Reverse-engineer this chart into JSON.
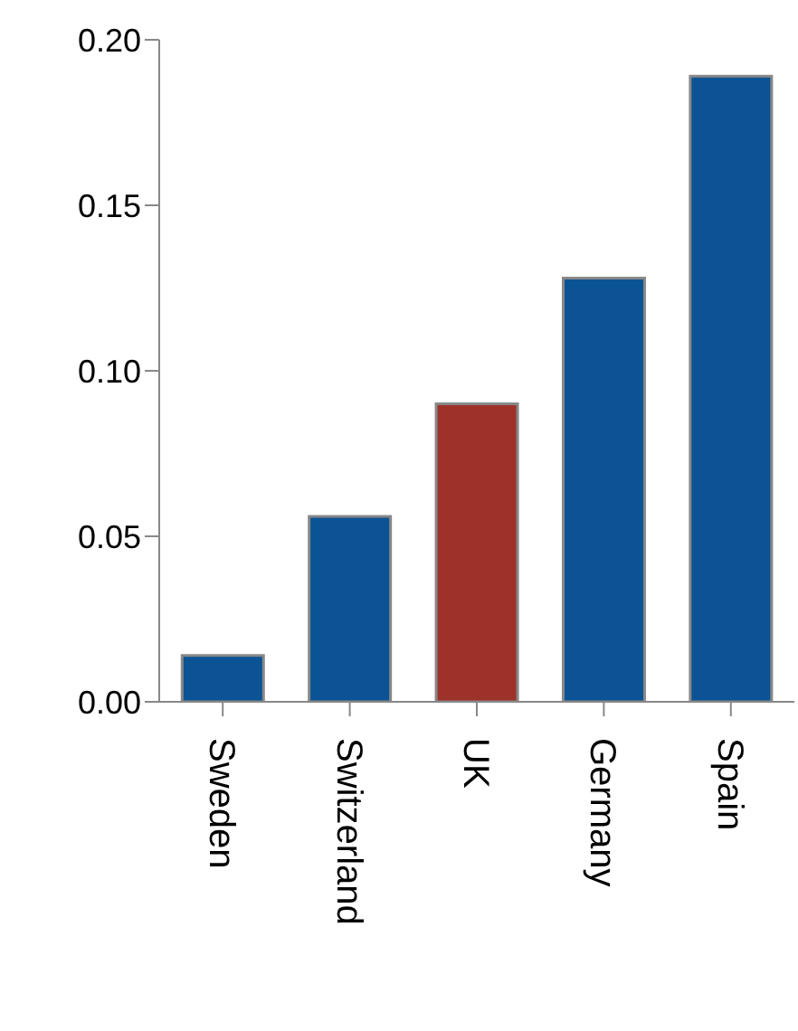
{
  "chart_data": {
    "type": "bar",
    "categories": [
      "Sweden",
      "Switzerland",
      "UK",
      "Germany",
      "Spain"
    ],
    "values": [
      0.014,
      0.056,
      0.09,
      0.128,
      0.189
    ],
    "colors": [
      "#0b5394",
      "#0b5394",
      "#9e3129",
      "#0b5394",
      "#0b5394"
    ],
    "ylim": [
      0,
      0.2
    ],
    "yticks": [
      {
        "value": 0,
        "label": "0.00"
      },
      {
        "value": 0.05,
        "label": "0.05"
      },
      {
        "value": 0.1,
        "label": "0.10"
      },
      {
        "value": 0.15,
        "label": "0.15"
      },
      {
        "value": 0.2,
        "label": "0.20"
      }
    ],
    "grid": false
  }
}
